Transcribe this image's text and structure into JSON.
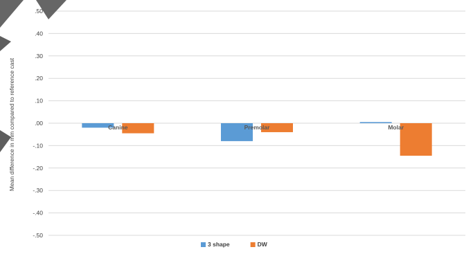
{
  "chart_data": {
    "type": "bar",
    "categories": [
      "Canine",
      "Premolar",
      "Molar"
    ],
    "series": [
      {
        "name": "3 shape",
        "color": "#5b9bd5",
        "values": [
          -0.02,
          -0.08,
          0.005
        ]
      },
      {
        "name": "DW",
        "color": "#ed7d31",
        "values": [
          -0.045,
          -0.04,
          -0.145
        ]
      }
    ],
    "ylabel": "Mean difference in mm compared to reference cast",
    "xlabel": "",
    "title": "",
    "ylim": [
      -0.5,
      0.5
    ],
    "y_ticks": [
      ".50",
      ".40",
      ".30",
      ".20",
      ".10",
      ".00",
      "-.10",
      "-.20",
      "-.30",
      "-.40",
      "-.50"
    ],
    "y_tick_values": [
      0.5,
      0.4,
      0.3,
      0.2,
      0.1,
      0.0,
      -0.1,
      -0.2,
      -0.3,
      -0.4,
      -0.5
    ],
    "grid": true,
    "legend": "bottom-center"
  }
}
